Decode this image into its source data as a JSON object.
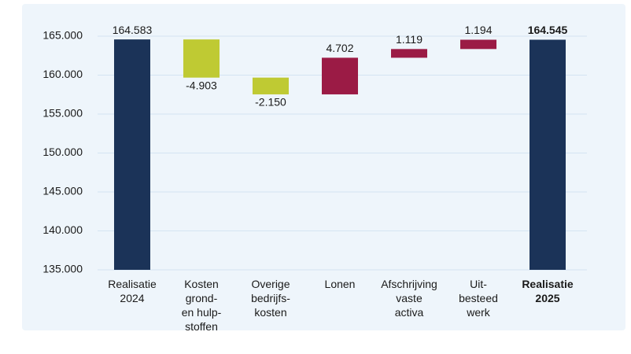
{
  "chart_data": {
    "type": "waterfall",
    "categories": [
      "Realisatie\n2024",
      "Kosten\ngrond-\nen hulp-\nstoffen",
      "Overige\nbedrijfs-\nkosten",
      "Lonen",
      "Afschrijving\nvaste\nactiva",
      "Uit-\nbesteed\nwerk",
      "Realisatie\n2025"
    ],
    "values": [
      164583,
      -4903,
      -2150,
      4702,
      1119,
      1194,
      164545
    ],
    "value_labels": [
      "164.583",
      "-4.903",
      "-2.150",
      "4.702",
      "1.119",
      "1.194",
      "164.545"
    ],
    "totals": [
      true,
      false,
      false,
      false,
      false,
      false,
      true
    ],
    "emphasis": [
      false,
      false,
      false,
      false,
      false,
      false,
      true
    ],
    "colors": {
      "total": "#1b3358",
      "increase": "#9b1b45",
      "decrease": "#bfca33"
    },
    "ylim": [
      135000,
      165000
    ],
    "yticks": [
      {
        "value": 135000,
        "label": "135.000"
      },
      {
        "value": 140000,
        "label": "140.000"
      },
      {
        "value": 145000,
        "label": "145.000"
      },
      {
        "value": 150000,
        "label": "150.000"
      },
      {
        "value": 155000,
        "label": "155.000"
      },
      {
        "value": 160000,
        "label": "160.000"
      },
      {
        "value": 165000,
        "label": "165.000"
      }
    ],
    "grid": true
  }
}
